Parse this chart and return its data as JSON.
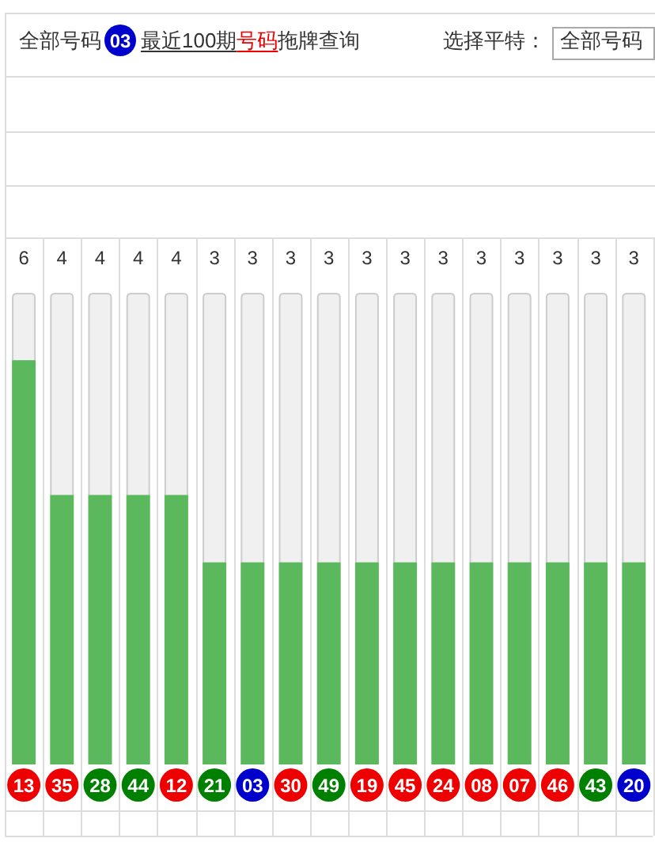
{
  "chart_data": {
    "type": "bar",
    "annotations": [
      "全部号码",
      "03",
      "最近100期",
      "号码",
      "拖牌查询",
      "选择平特：",
      "全部号码"
    ],
    "categories": [
      "13",
      "35",
      "28",
      "44",
      "12",
      "21",
      "03",
      "30",
      "49",
      "19",
      "45",
      "24",
      "08",
      "07",
      "46",
      "43",
      "20"
    ],
    "values": [
      6,
      4,
      4,
      4,
      4,
      3,
      3,
      3,
      3,
      3,
      3,
      3,
      3,
      3,
      3,
      3,
      3
    ],
    "color": "#5cb85c",
    "ylim": [
      0,
      7
    ],
    "data_labels": true
  }
}
